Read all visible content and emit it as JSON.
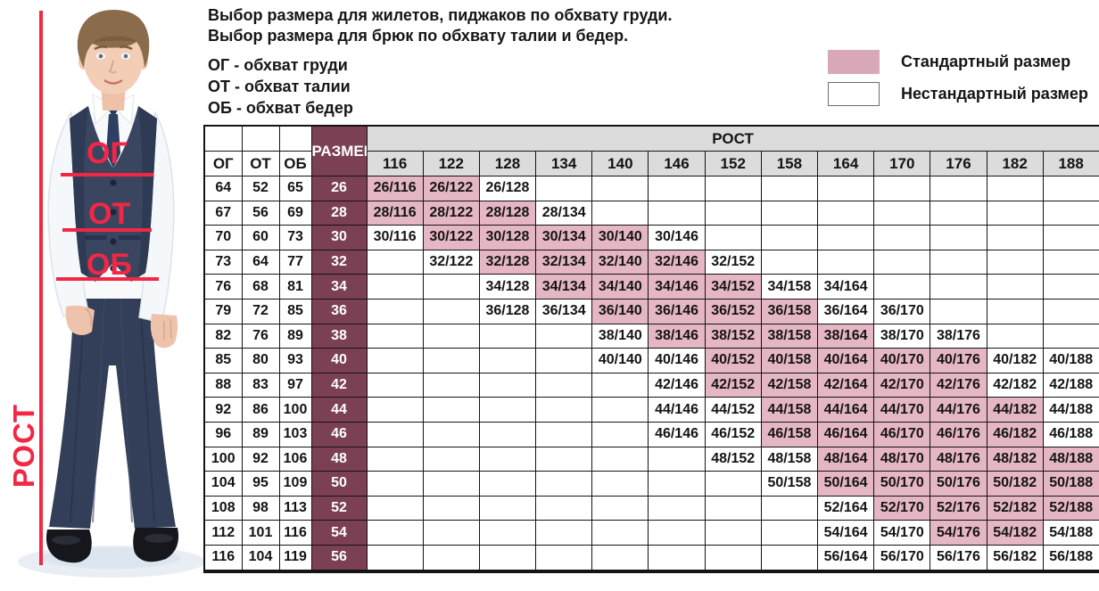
{
  "intro": {
    "line1": "Выбор размера для жилетов, пиджаков по обхвату груди.",
    "line2": "Выбор размера для брюк по обхвату талии и бедер."
  },
  "abbreviations": [
    "ОГ - обхват груди",
    "ОТ - обхват талии",
    "ОБ - обхват бедер"
  ],
  "legend": {
    "standard_label": "Стандартный размер",
    "nonstandard_label": "Нестандартный размер"
  },
  "photo_annotations": {
    "chest": "ОГ",
    "waist": "ОТ",
    "hips": "ОБ",
    "height": "РОСТ"
  },
  "colors": {
    "standard_cell_fill": "#e5b6c4",
    "legend_standard_fill": "#d9a9b9",
    "nonstandard_fill": "#ffffff",
    "size_column_fill": "#7b4053",
    "header_fill": "#dcdcdc",
    "annotation_red": "#f22745",
    "table_border": "#141414"
  },
  "table": {
    "corner_headers": [
      "ОГ",
      "ОТ",
      "ОБ"
    ],
    "size_header": "РАЗМЕР",
    "group_header": "РОСТ",
    "heights": [
      "116",
      "122",
      "128",
      "134",
      "140",
      "146",
      "152",
      "158",
      "164",
      "170",
      "176",
      "182",
      "188"
    ],
    "cell_format": "{size}/{height}",
    "rows": [
      {
        "og": "64",
        "ot": "52",
        "ob": "65",
        "size": "26",
        "standard": [
          "116",
          "122"
        ],
        "nonstandard": [
          "128"
        ]
      },
      {
        "og": "67",
        "ot": "56",
        "ob": "69",
        "size": "28",
        "standard": [
          "116",
          "122",
          "128"
        ],
        "nonstandard": [
          "134"
        ]
      },
      {
        "og": "70",
        "ot": "60",
        "ob": "73",
        "size": "30",
        "standard": [
          "122",
          "128",
          "134",
          "140"
        ],
        "nonstandard": [
          "116",
          "146"
        ]
      },
      {
        "og": "73",
        "ot": "64",
        "ob": "77",
        "size": "32",
        "standard": [
          "128",
          "134",
          "140",
          "146"
        ],
        "nonstandard": [
          "122",
          "152"
        ]
      },
      {
        "og": "76",
        "ot": "68",
        "ob": "81",
        "size": "34",
        "standard": [
          "134",
          "140",
          "146",
          "152"
        ],
        "nonstandard": [
          "128",
          "158",
          "164"
        ]
      },
      {
        "og": "79",
        "ot": "72",
        "ob": "85",
        "size": "36",
        "standard": [
          "140",
          "146",
          "152",
          "158"
        ],
        "nonstandard": [
          "128",
          "134",
          "164",
          "170"
        ]
      },
      {
        "og": "82",
        "ot": "76",
        "ob": "89",
        "size": "38",
        "standard": [
          "146",
          "152",
          "158",
          "164"
        ],
        "nonstandard": [
          "140",
          "170",
          "176"
        ]
      },
      {
        "og": "85",
        "ot": "80",
        "ob": "93",
        "size": "40",
        "standard": [
          "152",
          "158",
          "164",
          "170",
          "176"
        ],
        "nonstandard": [
          "140",
          "146",
          "182",
          "188"
        ]
      },
      {
        "og": "88",
        "ot": "83",
        "ob": "97",
        "size": "42",
        "standard": [
          "152",
          "158",
          "164",
          "170",
          "176"
        ],
        "nonstandard": [
          "146",
          "182",
          "188"
        ]
      },
      {
        "og": "92",
        "ot": "86",
        "ob": "100",
        "size": "44",
        "standard": [
          "158",
          "164",
          "170",
          "176",
          "182"
        ],
        "nonstandard": [
          "146",
          "152",
          "188"
        ]
      },
      {
        "og": "96",
        "ot": "89",
        "ob": "103",
        "size": "46",
        "standard": [
          "158",
          "164",
          "170",
          "176",
          "182"
        ],
        "nonstandard": [
          "146",
          "152",
          "188"
        ]
      },
      {
        "og": "100",
        "ot": "92",
        "ob": "106",
        "size": "48",
        "standard": [
          "164",
          "170",
          "176",
          "182",
          "188"
        ],
        "nonstandard": [
          "152",
          "158"
        ]
      },
      {
        "og": "104",
        "ot": "95",
        "ob": "109",
        "size": "50",
        "standard": [
          "164",
          "170",
          "176",
          "182",
          "188"
        ],
        "nonstandard": [
          "158"
        ]
      },
      {
        "og": "108",
        "ot": "98",
        "ob": "113",
        "size": "52",
        "standard": [
          "170",
          "176",
          "182",
          "188"
        ],
        "nonstandard": [
          "164"
        ]
      },
      {
        "og": "112",
        "ot": "101",
        "ob": "116",
        "size": "54",
        "standard": [
          "176",
          "182"
        ],
        "nonstandard": [
          "164",
          "170",
          "188"
        ]
      },
      {
        "og": "116",
        "ot": "104",
        "ob": "119",
        "size": "56",
        "standard": [],
        "nonstandard": [
          "164",
          "170",
          "176",
          "182",
          "188"
        ]
      }
    ]
  }
}
